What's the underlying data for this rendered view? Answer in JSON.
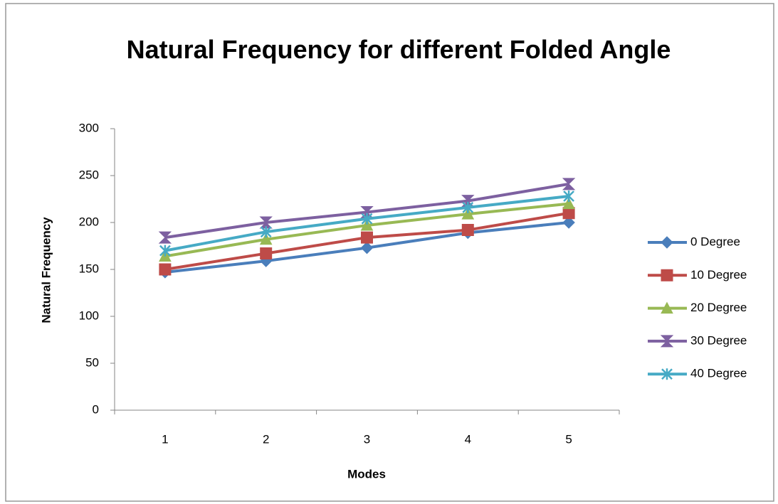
{
  "chart_data": {
    "type": "line",
    "title": "Natural Frequency for different Folded Angle",
    "x_label": "Modes",
    "y_label": "Natural Frequency",
    "categories": [
      "1",
      "2",
      "3",
      "4",
      "5"
    ],
    "series": [
      {
        "name": "0 Degree",
        "color": "#4a7ebb",
        "values": [
          147,
          159,
          173,
          189,
          200
        ]
      },
      {
        "name": "10 Degree",
        "color": "#be4b48",
        "values": [
          150,
          167,
          184,
          192,
          210
        ]
      },
      {
        "name": "20 Degree",
        "color": "#98b954",
        "values": [
          164,
          182,
          197,
          209,
          220
        ]
      },
      {
        "name": "30 Degree",
        "color": "#7d60a0",
        "values": [
          184,
          200,
          211,
          223,
          241
        ]
      },
      {
        "name": "40 Degree",
        "color": "#46aac5",
        "values": [
          170,
          190,
          204,
          216,
          228
        ]
      }
    ],
    "ylim": [
      0,
      300
    ],
    "yticks": [
      0,
      50,
      100,
      150,
      200,
      250,
      300
    ],
    "grid": false,
    "legend": "right"
  }
}
